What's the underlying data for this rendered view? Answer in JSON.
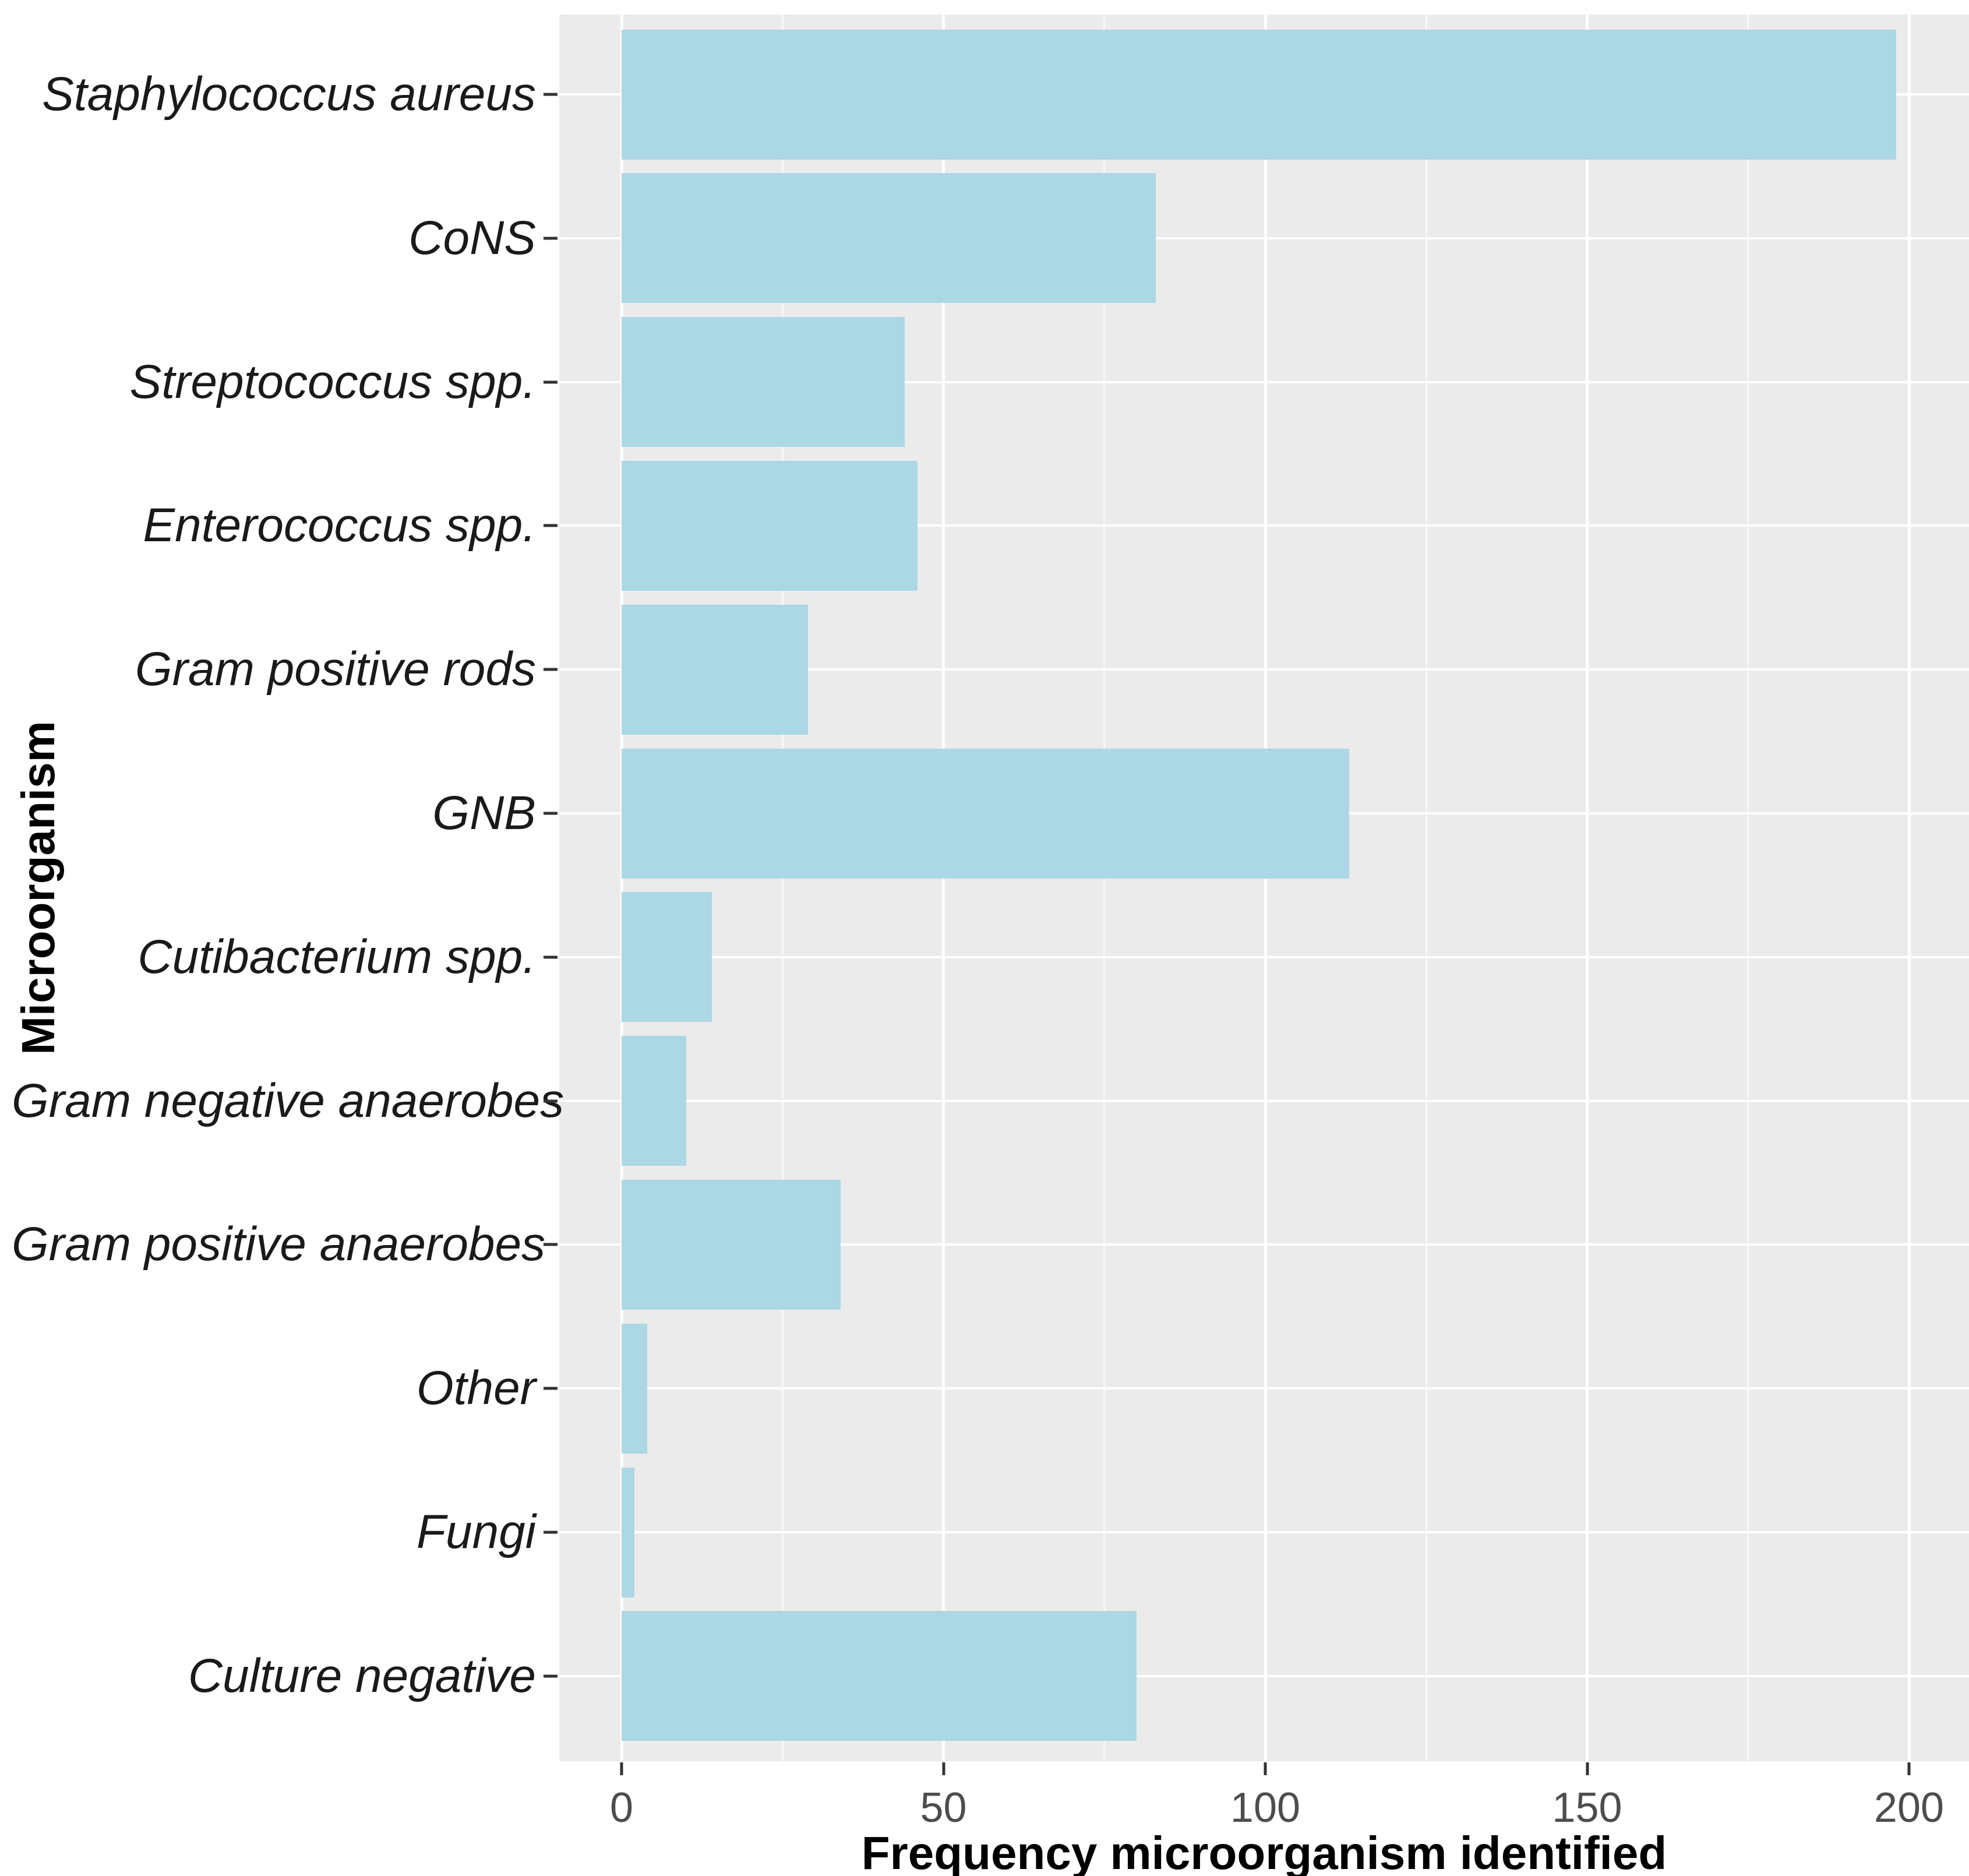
{
  "chart_data": {
    "type": "bar",
    "orientation": "horizontal",
    "title": "",
    "xlabel": "Frequency microorganism identified",
    "ylabel": "Microorganism",
    "categories": [
      "Staphylococcus aureus",
      "CoNS",
      "Streptococcus spp.",
      "Enterococcus spp.",
      "Gram positive rods",
      "GNB",
      "Cutibacterium spp.",
      "Gram negative anaerobes",
      "Gram positive anaerobes",
      "Other",
      "Fungi",
      "Culture negative"
    ],
    "values": [
      198,
      83,
      44,
      46,
      29,
      113,
      14,
      10,
      34,
      4,
      2,
      80
    ],
    "xlim": [
      0,
      200
    ],
    "x_ticks": [
      0,
      50,
      100,
      150,
      200
    ],
    "x_minor_ticks": [
      25,
      75,
      125,
      175
    ],
    "grid": "major and minor vertical white lines, horizontal white line per category, on gray panel",
    "legend": "none",
    "bar_color": "#ACD7E4",
    "panel_bg": "#EBEBEB",
    "tick_label_color": "#4D4D4D",
    "category_label_color": "#1A1A1A"
  }
}
